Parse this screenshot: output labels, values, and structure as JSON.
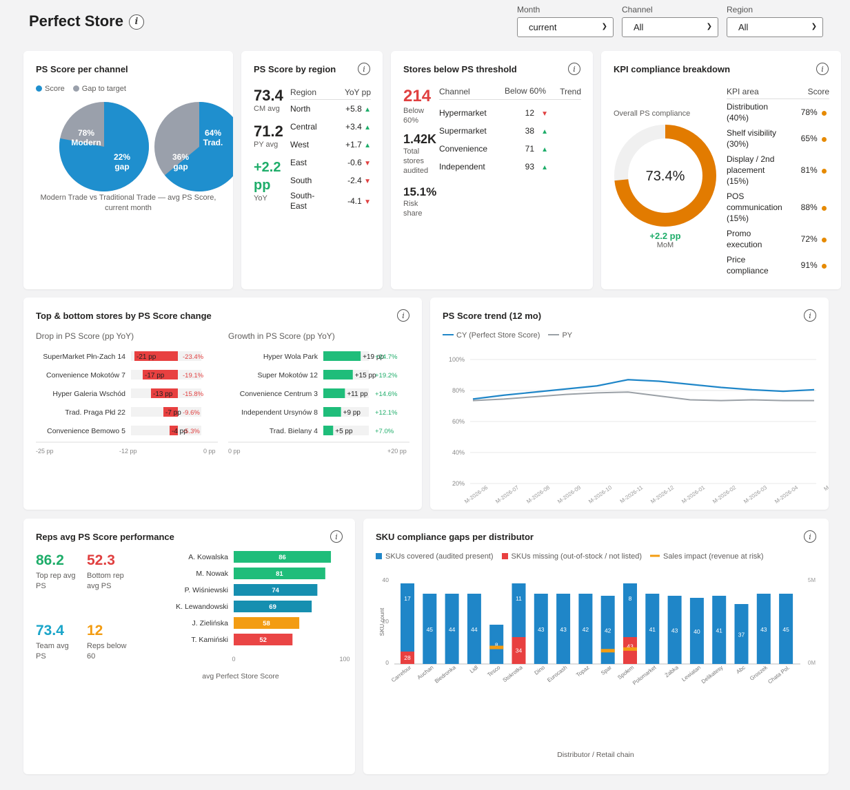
{
  "header": {
    "title": "Perfect Store"
  },
  "filters": [
    {
      "label": "Month",
      "value": "current"
    },
    {
      "label": "Channel",
      "value": "All"
    },
    {
      "label": "Region",
      "value": "All"
    }
  ],
  "ps_channel": {
    "title": "PS Score per channel",
    "legend": [
      "Score",
      "Gap to target"
    ],
    "caption": "Modern Trade vs Traditional Trade — avg PS Score, current month",
    "pies": [
      {
        "score_pct": 78,
        "score_label": "78%",
        "name": "Modern",
        "gap_pct": 22,
        "gap_label": "22%",
        "gap_word": "gap"
      },
      {
        "score_pct": 64,
        "score_label": "64%",
        "name": "Trad.",
        "gap_pct": 36,
        "gap_label": "36%",
        "gap_word": "gap"
      }
    ]
  },
  "ps_region": {
    "title": "PS Score by region",
    "kpis": [
      {
        "value": "73.4",
        "label": "CM avg"
      },
      {
        "value": "71.2",
        "label": "PY avg"
      },
      {
        "value": "+2.2 pp",
        "label": "YoY"
      }
    ],
    "col_region": "Region",
    "col_yoy": "YoY pp",
    "rows": [
      {
        "region": "North",
        "yoy": "+5.8",
        "dir": "up"
      },
      {
        "region": "Central",
        "yoy": "+3.4",
        "dir": "up"
      },
      {
        "region": "West",
        "yoy": "+1.7",
        "dir": "up"
      },
      {
        "region": "East",
        "yoy": "-0.6",
        "dir": "down"
      },
      {
        "region": "South",
        "yoy": "-2.4",
        "dir": "down"
      },
      {
        "region": "South-East",
        "yoy": "-4.1",
        "dir": "down"
      }
    ]
  },
  "stores_below": {
    "title": "Stores below PS threshold",
    "kpis": [
      {
        "value": "214",
        "label": "Below 60%"
      },
      {
        "value": "1.42K",
        "label": "Total stores audited"
      },
      {
        "value": "15.1%",
        "label": "Risk share"
      }
    ],
    "col_channel": "Channel",
    "col_below": "Below 60%",
    "col_trend": "Trend",
    "rows": [
      {
        "channel": "Hypermarket",
        "below": "12",
        "dir": "down"
      },
      {
        "channel": "Supermarket",
        "below": "38",
        "dir": "up"
      },
      {
        "channel": "Convenience",
        "below": "71",
        "dir": "up"
      },
      {
        "channel": "Independent",
        "below": "93",
        "dir": "up"
      }
    ]
  },
  "kpi_compliance": {
    "title": "KPI compliance breakdown",
    "donut_label": "Overall PS compliance",
    "donut_value": "73.4%",
    "donut_pct": 73.4,
    "delta": "+2.2 pp",
    "delta_label": "MoM",
    "col_area": "KPI area",
    "col_score": "Score",
    "rows": [
      {
        "area": "Distribution (40%)",
        "score": "78%"
      },
      {
        "area": "Shelf visibility (30%)",
        "score": "65%"
      },
      {
        "area": "Display / 2nd placement (15%)",
        "score": "81%"
      },
      {
        "area": "POS communication (15%)",
        "score": "88%"
      },
      {
        "area": "Promo execution",
        "score": "72%"
      },
      {
        "area": "Price compliance",
        "score": "91%"
      }
    ]
  },
  "top_bottom": {
    "title": "Top & bottom stores by PS Score change",
    "drop_title": "Drop in PS Score (pp YoY)",
    "growth_title": "Growth in PS Score (pp YoY)",
    "drop_axis": [
      "-25 pp",
      "-12 pp",
      "0 pp"
    ],
    "growth_axis": [
      "0 pp",
      "+20 pp"
    ],
    "drops": [
      {
        "name": "SuperMarket Płn-Zach 14",
        "value": -21,
        "label": "-21 pp",
        "pct": "-23.4%"
      },
      {
        "name": "Convenience Mokotów 7",
        "value": -17,
        "label": "-17 pp",
        "pct": "-19.1%"
      },
      {
        "name": "Hyper Galeria Wschód",
        "value": -13,
        "label": "-13 pp",
        "pct": "-15.8%"
      },
      {
        "name": "Trad. Praga Płd 22",
        "value": -7,
        "label": "-7 pp",
        "pct": "-9.6%"
      },
      {
        "name": "Convenience Bemowo 5",
        "value": -4,
        "label": "-4 pp",
        "pct": "-5.3%"
      }
    ],
    "growth": [
      {
        "name": "Hyper Wola Park",
        "value": 19,
        "label": "+19 pp",
        "pct": "+24.7%"
      },
      {
        "name": "Super Mokotów 12",
        "value": 15,
        "label": "+15 pp",
        "pct": "+19.2%"
      },
      {
        "name": "Convenience Centrum 3",
        "value": 11,
        "label": "+11 pp",
        "pct": "+14.6%"
      },
      {
        "name": "Independent Ursynów 8",
        "value": 9,
        "label": "+9 pp",
        "pct": "+12.1%"
      },
      {
        "name": "Trad. Bielany 4",
        "value": 5,
        "label": "+5 pp",
        "pct": "+7.0%"
      }
    ]
  },
  "reps": {
    "title": "Reps avg PS Score performance",
    "kpis": [
      {
        "value": "86.2",
        "label": "Top rep avg PS",
        "color": "#1fad6a"
      },
      {
        "value": "52.3",
        "label": "Bottom rep avg PS",
        "color": "#e04040"
      },
      {
        "value": "73.4",
        "label": "Team avg PS",
        "color": "#1aa5c9"
      },
      {
        "value": "12",
        "label": "Reps below 60",
        "color": "#f39c12"
      }
    ],
    "axis_min": "0",
    "axis_max": "100",
    "xlabel": "avg Perfect Store Score",
    "bars": [
      {
        "name": "A. Kowalska",
        "value": 86,
        "color": "#1fbd7a"
      },
      {
        "name": "M. Nowak",
        "value": 81,
        "color": "#1fbd7a"
      },
      {
        "name": "P. Wiśniewski",
        "value": 74,
        "color": "#168fb0"
      },
      {
        "name": "K. Lewandowski",
        "value": 69,
        "color": "#168fb0"
      },
      {
        "name": "J. Zielińska",
        "value": 58,
        "color": "#f39c12"
      },
      {
        "name": "T. Kamiński",
        "value": 52,
        "color": "#ea4545"
      }
    ]
  },
  "chart_data": [
    {
      "type": "line",
      "title": "PS Score trend (12 mo)",
      "x": [
        "M-2026-06",
        "M-2026-07",
        "M-2026-08",
        "M-2026-09",
        "M-2026-10",
        "M-2026-11",
        "M-2026-12",
        "M-2026-01",
        "M-2026-02",
        "M-2026-03",
        "M-2026-04",
        "M"
      ],
      "yticks": [
        "100%",
        "80%",
        "60%",
        "40%",
        "20%"
      ],
      "ylim": [
        20,
        100
      ],
      "series": [
        {
          "name": "CY (Perfect Store Score)",
          "color": "#1f86c8",
          "values": [
            74.5,
            77,
            79,
            81,
            83,
            87,
            86,
            84,
            82,
            80.5,
            79.5,
            80.5
          ]
        },
        {
          "name": "PY",
          "color": "#9aa0a6",
          "values": [
            73.5,
            74.5,
            76,
            77.5,
            78.5,
            79,
            76.5,
            74,
            73.5,
            74,
            73.5,
            73.5
          ]
        }
      ]
    },
    {
      "type": "bar",
      "title": "SKU compliance gaps per distributor",
      "legend": [
        "SKUs covered (audited present)",
        "SKUs missing (out-of-stock / not listed)",
        "Sales impact (revenue at risk)"
      ],
      "xlabel": "Distributor / Retail chain",
      "ylabel": "SKU count",
      "yticks": [
        "40",
        "20",
        "0"
      ],
      "y2ticks": [
        "5M",
        "0M"
      ],
      "ylim": [
        0,
        40
      ],
      "categories": [
        "Carrefour",
        "Auchan",
        "Biedronka",
        "Lidl",
        "Tesco",
        "Stokrotka",
        "Dino",
        "Eurocash",
        "Topaz",
        "Spar",
        "Społem",
        "Polomarket",
        "Żabka",
        "Lewiatan",
        "Delikatesy",
        "Abc",
        "Groszek",
        "Chata Pol."
      ],
      "covered": [
        17,
        45,
        44,
        44,
        8,
        11,
        43,
        43,
        42,
        42,
        8,
        41,
        43,
        40,
        41,
        37,
        43,
        45
      ],
      "covered_height": [
        33,
        34,
        34,
        34,
        19,
        26,
        34,
        34,
        34,
        33,
        26,
        34,
        33,
        32,
        33,
        29,
        34,
        34
      ],
      "missing": [
        28,
        0,
        0,
        0,
        0,
        34,
        0,
        0,
        0,
        0,
        43,
        0,
        0,
        0,
        0,
        0,
        0,
        0
      ],
      "missing_height": [
        6,
        0,
        0,
        0,
        0,
        13,
        0,
        0,
        0,
        0,
        13,
        0,
        0,
        0,
        0,
        0,
        0,
        0
      ],
      "impact": [
        null,
        null,
        null,
        null,
        1.0,
        null,
        null,
        null,
        null,
        0.8,
        0.9,
        null,
        null,
        null,
        null,
        null,
        null,
        null
      ]
    }
  ]
}
